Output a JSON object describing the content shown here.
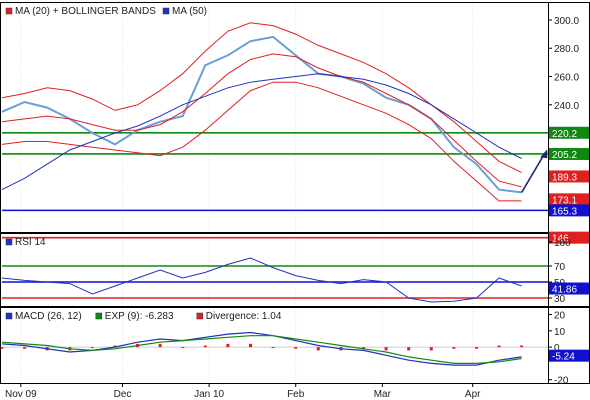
{
  "chart_data": [
    {
      "type": "line",
      "panel": "price",
      "legend": [
        {
          "label": "MA (20) + BOLLINGER BANDS",
          "color": "#e02020"
        },
        {
          "label": "MA (50)",
          "color": "#2030c0"
        }
      ],
      "ylim": [
        150,
        312
      ],
      "yticks": [
        "300.0",
        "280.0",
        "260.0",
        "240.0",
        "220.0",
        "205.2",
        "189.3",
        "173.1",
        "165.3",
        "146"
      ],
      "ytick_values": [
        300,
        280,
        260,
        240,
        220,
        205.2,
        189.3,
        173.1,
        165.3,
        146
      ],
      "hlines": [
        {
          "value": 220.2,
          "color": "#118811",
          "label": "220.2"
        },
        {
          "value": 205.2,
          "color": "#118811",
          "label": "205.2"
        },
        {
          "value": 165.3,
          "color": "#1010d0",
          "label": "165.3"
        },
        {
          "value": 146,
          "color": "#e02020",
          "label": "146"
        }
      ],
      "badges": [
        {
          "label": "220.2",
          "value": 220.2,
          "color": "#118811"
        },
        {
          "label": "205.2",
          "value": 205.2,
          "color": "#118811"
        },
        {
          "label": "189.3",
          "value": 189.3,
          "color": "#e02020"
        },
        {
          "label": "173.1",
          "value": 173.1,
          "color": "#e02020"
        },
        {
          "label": "165.3",
          "value": 165.3,
          "color": "#1010d0"
        },
        {
          "label": "146",
          "value": 146,
          "color": "#e02020"
        }
      ],
      "x": [
        0,
        6,
        12,
        18,
        24,
        30,
        36,
        42,
        48,
        54,
        60,
        66,
        72,
        78,
        84,
        90,
        96,
        102,
        108,
        114,
        120,
        126,
        132,
        138
      ],
      "series": [
        {
          "role": "price",
          "color": "#6a9ed6",
          "values": [
            235,
            242,
            238,
            230,
            220,
            212,
            222,
            228,
            232,
            268,
            275,
            285,
            288,
            275,
            262,
            260,
            255,
            245,
            240,
            230,
            210,
            198,
            180,
            178
          ]
        },
        {
          "role": "ma20",
          "color": "#e02020",
          "values": [
            228,
            230,
            232,
            230,
            226,
            222,
            222,
            226,
            235,
            248,
            262,
            272,
            276,
            274,
            266,
            260,
            256,
            248,
            240,
            230,
            215,
            200,
            186,
            182
          ]
        },
        {
          "role": "upper",
          "color": "#e02020",
          "values": [
            245,
            248,
            252,
            250,
            244,
            236,
            240,
            250,
            262,
            278,
            292,
            298,
            296,
            290,
            282,
            276,
            270,
            262,
            252,
            240,
            228,
            214,
            200,
            192
          ]
        },
        {
          "role": "lower",
          "color": "#e02020",
          "values": [
            212,
            214,
            214,
            212,
            210,
            208,
            206,
            204,
            210,
            222,
            236,
            250,
            256,
            256,
            252,
            246,
            240,
            234,
            226,
            216,
            200,
            186,
            172,
            172
          ]
        },
        {
          "role": "ma50",
          "color": "#2030c0",
          "values": [
            180,
            188,
            198,
            208,
            214,
            220,
            225,
            232,
            240,
            246,
            252,
            256,
            258,
            260,
            262,
            260,
            258,
            254,
            248,
            240,
            230,
            220,
            210,
            202
          ]
        }
      ]
    },
    {
      "type": "line",
      "panel": "rsi",
      "legend": [
        {
          "label": "RSI 14",
          "color": "#2030c0"
        }
      ],
      "ylim": [
        20,
        110
      ],
      "yticks": [
        "100",
        "70",
        "50",
        "30"
      ],
      "ytick_values": [
        100,
        70,
        50,
        30
      ],
      "hlines": [
        {
          "value": 70,
          "color": "#118811"
        },
        {
          "value": 50,
          "color": "#1010d0"
        },
        {
          "value": 30,
          "color": "#e02020"
        }
      ],
      "badge": {
        "label": "41.86",
        "value": 41.86
      },
      "x": [
        0,
        6,
        12,
        18,
        24,
        30,
        36,
        42,
        48,
        54,
        60,
        66,
        72,
        78,
        84,
        90,
        96,
        102,
        108,
        114,
        120,
        126,
        132,
        138
      ],
      "values": [
        55,
        52,
        50,
        48,
        35,
        45,
        55,
        65,
        55,
        62,
        72,
        80,
        68,
        58,
        52,
        48,
        53,
        50,
        30,
        25,
        26,
        30,
        55,
        45
      ]
    },
    {
      "type": "line",
      "panel": "macd",
      "legend": [
        {
          "label": "MACD (26, 12)",
          "color": "#2030c0"
        },
        {
          "label": "EXP (9): -6.283",
          "color": "#118811"
        },
        {
          "label": "Divergence: 1.04",
          "color": "#e02020"
        }
      ],
      "ylim": [
        -22,
        24
      ],
      "yticks": [
        "20",
        "10",
        "0",
        "-5.24",
        "-20"
      ],
      "ytick_values": [
        20,
        10,
        0,
        -5.24,
        -20
      ],
      "badge": {
        "label": "-5.24",
        "value": -5.24
      },
      "x": [
        0,
        6,
        12,
        18,
        24,
        30,
        36,
        42,
        48,
        54,
        60,
        66,
        72,
        78,
        84,
        90,
        96,
        102,
        108,
        114,
        120,
        126,
        132,
        138
      ],
      "series": [
        {
          "role": "macd",
          "color": "#2030c0",
          "values": [
            2,
            1,
            -1,
            -3,
            -2,
            0,
            3,
            5,
            4,
            6,
            8,
            9,
            7,
            4,
            1,
            -1,
            -2,
            -5,
            -8,
            -10,
            -11,
            -11,
            -8,
            -6
          ]
        },
        {
          "role": "signal",
          "color": "#118811",
          "values": [
            3,
            2,
            1,
            -1,
            -2,
            -1,
            1,
            3,
            4,
            5,
            6,
            7,
            7,
            5,
            3,
            1,
            -1,
            -3,
            -6,
            -8,
            -10,
            -10,
            -9,
            -7
          ]
        },
        {
          "role": "divergence",
          "color": "#e02020",
          "values": [
            -1,
            -1,
            -2,
            -2,
            0,
            1,
            2,
            2,
            0,
            1,
            2,
            2,
            0,
            -1,
            -2,
            -2,
            -1,
            -2,
            -2,
            -2,
            -1,
            -1,
            1,
            1
          ]
        }
      ]
    }
  ],
  "xaxis": {
    "xlim": [
      0,
      145
    ],
    "labels": [
      {
        "label": "Nov 09",
        "x": 5
      },
      {
        "label": "Dec",
        "x": 32
      },
      {
        "label": "Jan 10",
        "x": 55
      },
      {
        "label": "Feb",
        "x": 78
      },
      {
        "label": "Mar",
        "x": 101
      },
      {
        "label": "Apr",
        "x": 125
      }
    ]
  }
}
